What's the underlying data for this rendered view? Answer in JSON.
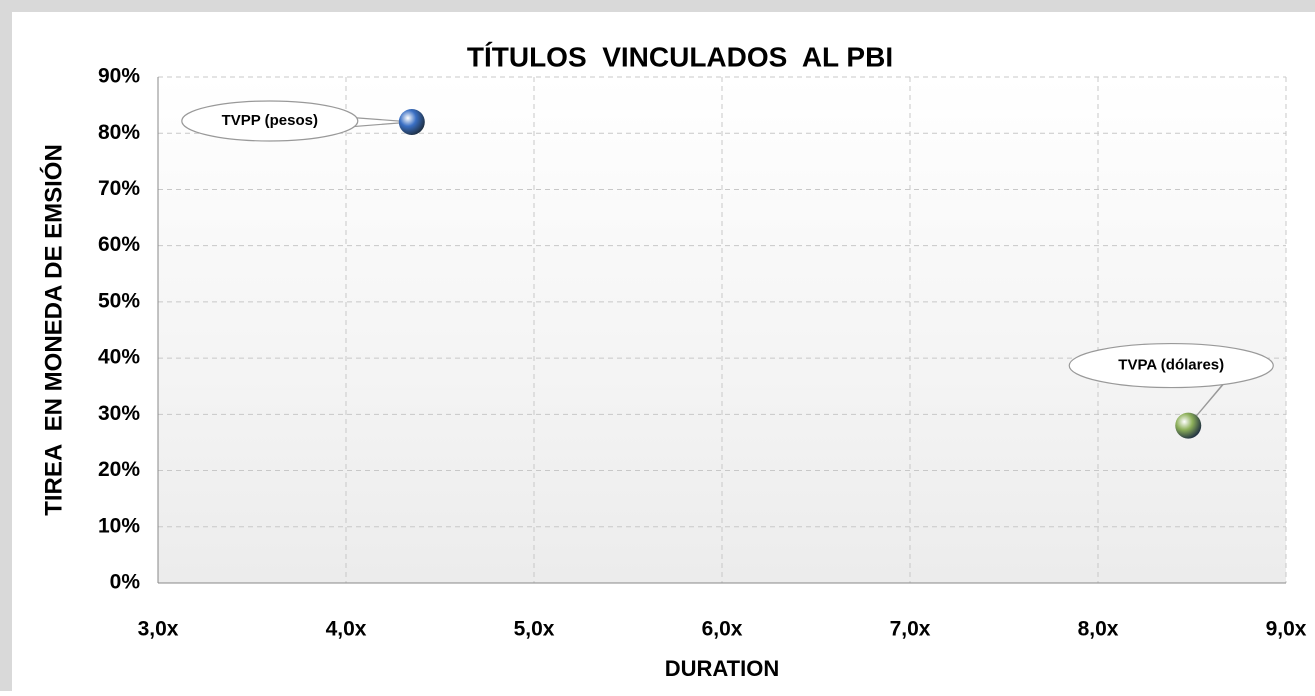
{
  "chart_data": {
    "type": "scatter",
    "title": "TÍTULOS  VINCULADOS  AL PBI",
    "x_label": "DURATION",
    "y_label": "TIREA  EN MONEDA DE EMSIÓN",
    "xlim": [
      3,
      9
    ],
    "ylim": [
      0,
      90
    ],
    "xticks": [
      {
        "value": 3,
        "label": "3,0x"
      },
      {
        "value": 4,
        "label": "4,0x"
      },
      {
        "value": 5,
        "label": "5,0x"
      },
      {
        "value": 6,
        "label": "6,0x"
      },
      {
        "value": 7,
        "label": "7,0x"
      },
      {
        "value": 8,
        "label": "8,0x"
      },
      {
        "value": 9,
        "label": "9,0x"
      }
    ],
    "yticks": [
      {
        "value": 0,
        "label": "0%"
      },
      {
        "value": 10,
        "label": "10%"
      },
      {
        "value": 20,
        "label": "20%"
      },
      {
        "value": 30,
        "label": "30%"
      },
      {
        "value": 40,
        "label": "40%"
      },
      {
        "value": 50,
        "label": "50%"
      },
      {
        "value": 60,
        "label": "60%"
      },
      {
        "value": 70,
        "label": "70%"
      },
      {
        "value": 80,
        "label": "80%"
      },
      {
        "value": 90,
        "label": "90%"
      }
    ],
    "grid": true,
    "series": [
      {
        "name": "TVPP (pesos)",
        "color": "#3a6fc4",
        "x": [
          4.35
        ],
        "values": [
          82
        ]
      },
      {
        "name": "TVPA (dólares)",
        "color": "#8db05a",
        "x": [
          8.48
        ],
        "values": [
          28
        ]
      }
    ]
  }
}
